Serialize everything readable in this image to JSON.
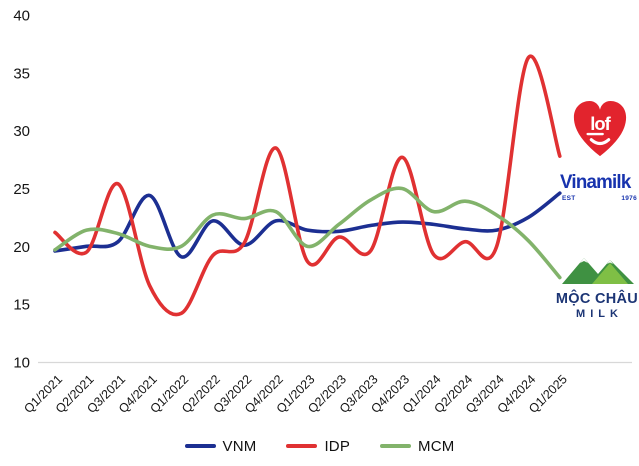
{
  "chart_data": {
    "type": "line",
    "title": "",
    "xlabel": "",
    "ylabel": "",
    "grid": false,
    "legend_position": "bottom",
    "ylim": [
      10,
      40
    ],
    "yticks": [
      10,
      15,
      20,
      25,
      30,
      35,
      40
    ],
    "categories": [
      "Q1/2021",
      "Q2/2021",
      "Q3/2021",
      "Q4/2021",
      "Q1/2022",
      "Q2/2022",
      "Q3/2022",
      "Q4/2022",
      "Q1/2023",
      "Q2/2023",
      "Q3/2023",
      "Q4/2023",
      "Q1/2024",
      "Q2/2024",
      "Q3/2024",
      "Q4/2024",
      "Q1/2025"
    ],
    "series": [
      {
        "name": "VNM",
        "color": "#1c2f92",
        "values": [
          19.6,
          20.0,
          20.4,
          24.4,
          19.1,
          22.2,
          20.1,
          22.2,
          21.4,
          21.3,
          21.8,
          22.1,
          21.9,
          21.5,
          21.4,
          22.5,
          24.6
        ]
      },
      {
        "name": "IDP",
        "color": "#e03132",
        "values": [
          21.2,
          19.5,
          25.4,
          16.6,
          14.2,
          19.2,
          20.3,
          28.5,
          18.7,
          20.8,
          19.6,
          27.7,
          19.3,
          20.4,
          20.0,
          36.3,
          27.8
        ]
      },
      {
        "name": "MCM",
        "color": "#82b36b",
        "values": [
          19.7,
          21.4,
          21.1,
          20.0,
          20.0,
          22.7,
          22.4,
          23.0,
          20.0,
          21.9,
          24.0,
          25.0,
          23.0,
          23.9,
          22.7,
          20.5,
          17.3
        ]
      }
    ],
    "axis_color": "#d8d8d8",
    "tick_label_color": "#151515"
  },
  "logos": {
    "lof": {
      "text": "lof",
      "color": "#e2242d"
    },
    "vinamilk": {
      "text": "Vinamilk",
      "est": "EST",
      "year": "1976",
      "color": "#1733ae"
    },
    "mocchau": {
      "line1": "MỘC CHÂU",
      "line2": "MILK",
      "navy": "#1c3575",
      "green_dark": "#3f9142",
      "green_light": "#7fbf45"
    }
  }
}
